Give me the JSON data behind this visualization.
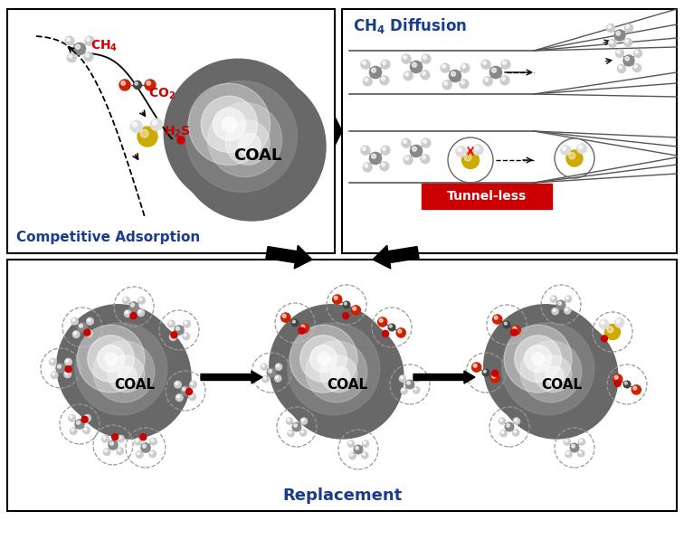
{
  "panel1_label": "Competitive Adsorption",
  "panel2_label": "CH₄ Diffusion",
  "panel3_label": "Replacement",
  "tunnel_less_label": "Tunnel-less",
  "coal_label": "COAL",
  "bg_color": "#ffffff",
  "panel_label_color": "#1a3c8c",
  "red_color": "#cc0000",
  "coal_body_color": "#707070",
  "arrow_color": "#000000",
  "line_color": "#555555",
  "ch4_c_color": "#888888",
  "ch4_h_color": "#cccccc",
  "co2_o_color": "#cc2200",
  "co2_c_color": "#444444",
  "h2s_s_color": "#ccaa00",
  "h2s_h_color": "#dddddd"
}
